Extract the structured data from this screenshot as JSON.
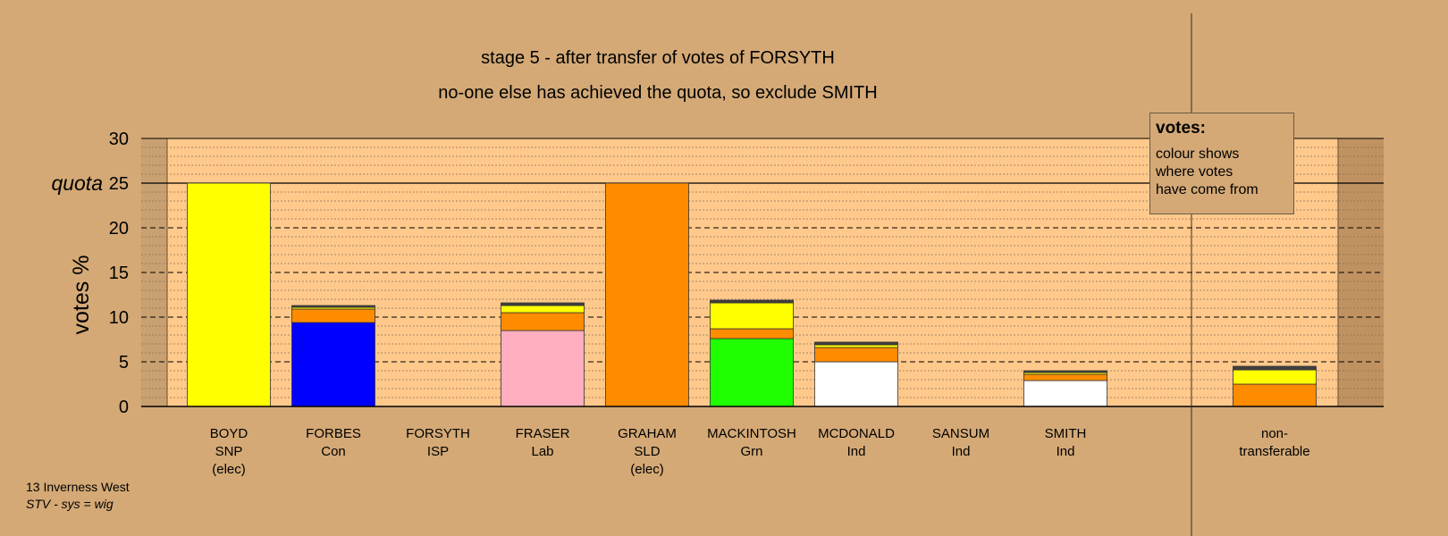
{
  "titles": {
    "line1": "stage 5 - after transfer of votes of FORSYTH",
    "line2": "no-one else has achieved the quota, so exclude SMITH"
  },
  "legend": {
    "title": "votes:",
    "body": "colour shows\nwhere votes\nhave come from"
  },
  "footer": {
    "ward": "13 Inverness West",
    "system": "STV - sys = wig"
  },
  "chart_data": {
    "type": "bar",
    "stacked": true,
    "ylabel": "votes %",
    "ylim": [
      0,
      30
    ],
    "yticks": [
      0,
      5,
      10,
      15,
      20,
      25,
      30
    ],
    "quota": {
      "label": "quota",
      "value": 25
    },
    "grid": "dashed major every 5, dotted minor every 1",
    "colors": {
      "SNP": "#ffff00",
      "Con": "#0000ff",
      "Lab": "#ffaec0",
      "SLD": "#ff8c00",
      "Grn": "#20ff00",
      "Ind": "#ffffff",
      "other": "#404040"
    },
    "categories": [
      {
        "name": "BOYD",
        "party": "SNP",
        "note": "(elec)",
        "segments": [
          {
            "from": "SNP",
            "value": 25.0
          }
        ]
      },
      {
        "name": "FORBES",
        "party": "Con",
        "note": "",
        "segments": [
          {
            "from": "Con",
            "value": 9.4
          },
          {
            "from": "SLD",
            "value": 1.5
          },
          {
            "from": "SNP",
            "value": 0.2
          },
          {
            "from": "other",
            "value": 0.2
          }
        ]
      },
      {
        "name": "FORSYTH",
        "party": "ISP",
        "note": "",
        "segments": []
      },
      {
        "name": "FRASER",
        "party": "Lab",
        "note": "",
        "segments": [
          {
            "from": "Lab",
            "value": 8.5
          },
          {
            "from": "SLD",
            "value": 2.0
          },
          {
            "from": "SNP",
            "value": 0.8
          },
          {
            "from": "other",
            "value": 0.3
          }
        ]
      },
      {
        "name": "GRAHAM",
        "party": "SLD",
        "note": "(elec)",
        "segments": [
          {
            "from": "SLD",
            "value": 25.0
          }
        ]
      },
      {
        "name": "MACKINTOSH",
        "party": "Grn",
        "note": "",
        "segments": [
          {
            "from": "Grn",
            "value": 7.6
          },
          {
            "from": "SLD",
            "value": 1.1
          },
          {
            "from": "SNP",
            "value": 2.9
          },
          {
            "from": "other",
            "value": 0.3
          }
        ]
      },
      {
        "name": "MCDONALD",
        "party": "Ind",
        "note": "",
        "segments": [
          {
            "from": "Ind",
            "value": 5.0
          },
          {
            "from": "SLD",
            "value": 1.6
          },
          {
            "from": "SNP",
            "value": 0.3
          },
          {
            "from": "other",
            "value": 0.3
          }
        ]
      },
      {
        "name": "SANSUM",
        "party": "Ind",
        "note": "",
        "segments": []
      },
      {
        "name": "SMITH",
        "party": "Ind",
        "note": "",
        "segments": [
          {
            "from": "Ind",
            "value": 2.9
          },
          {
            "from": "SLD",
            "value": 0.7
          },
          {
            "from": "SNP",
            "value": 0.2
          },
          {
            "from": "other",
            "value": 0.2
          }
        ]
      },
      {
        "name": "non-",
        "party": "transferable",
        "note": "",
        "segments": [
          {
            "from": "SLD",
            "value": 2.5
          },
          {
            "from": "SNP",
            "value": 1.6
          },
          {
            "from": "other",
            "value": 0.4
          }
        ]
      }
    ]
  }
}
